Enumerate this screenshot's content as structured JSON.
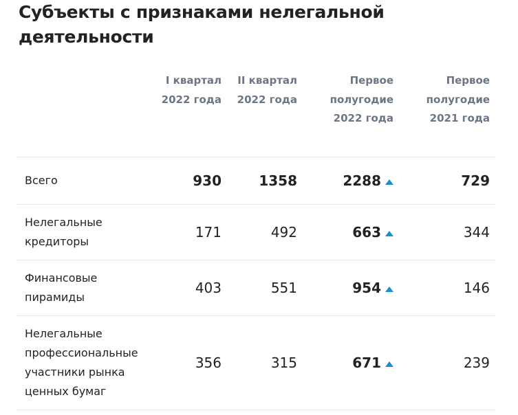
{
  "title": "Субъекты с признаками нелегальной деятельности",
  "accent_color": "#1a8fd0",
  "columns": [
    "",
    "I квартал 2022 года",
    "II квартал 2022 года",
    "Первое полугодие 2022 года",
    "Первое полугодие 2021 года"
  ],
  "rows": [
    {
      "label": "Всего",
      "q1": "930",
      "q2": "1358",
      "h1_2022": "2288",
      "h1_2021": "729",
      "trend": "up"
    },
    {
      "label": "Нелегальные кредиторы",
      "q1": "171",
      "q2": "492",
      "h1_2022": "663",
      "h1_2021": "344",
      "trend": "up"
    },
    {
      "label": "Финансовые пирамиды",
      "q1": "403",
      "q2": "551",
      "h1_2022": "954",
      "h1_2021": "146",
      "trend": "up"
    },
    {
      "label": "Нелегальные профессиональные участники рынка ценных бумаг",
      "q1": "356",
      "q2": "315",
      "h1_2022": "671",
      "h1_2021": "239",
      "trend": "up"
    }
  ]
}
